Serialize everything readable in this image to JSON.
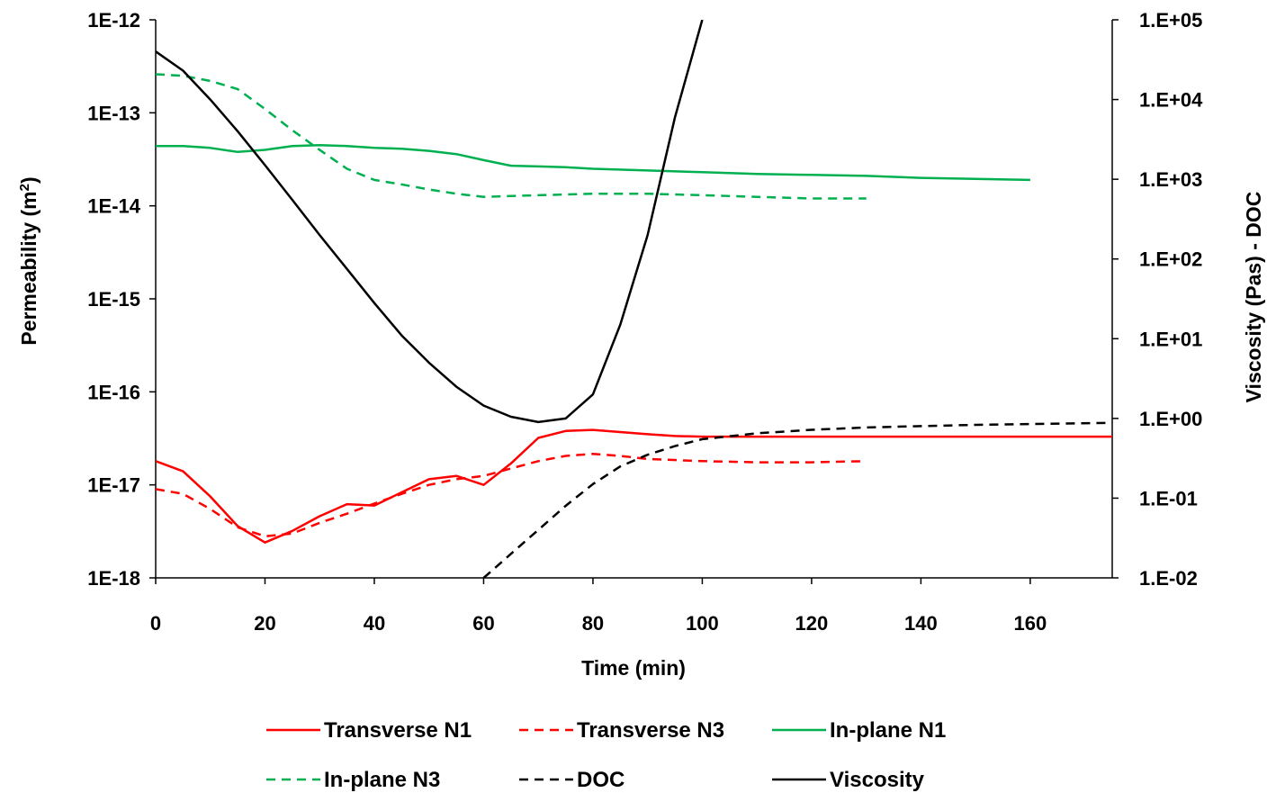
{
  "chart_data": {
    "type": "line",
    "xlabel": "Time (min)",
    "ylabel_left_text": "Permeability (m",
    "ylabel_left_sup": "2",
    "ylabel_left_close": ")",
    "ylabel_right": "Viscosity (Pas) - DOC",
    "xlim": [
      0,
      175
    ],
    "x_ticks": [
      "0",
      "20",
      "40",
      "60",
      "80",
      "100",
      "120",
      "140",
      "160"
    ],
    "x_tick_values": [
      0,
      20,
      40,
      60,
      80,
      100,
      120,
      140,
      160
    ],
    "y_left_scale": "log",
    "y_left_lim": [
      1e-18,
      1e-12
    ],
    "y_left_ticks": [
      "1E-18",
      "1E-17",
      "1E-16",
      "1E-15",
      "1E-14",
      "1E-13",
      "1E-12"
    ],
    "y_left_tick_values": [
      1e-18,
      1e-17,
      1e-16,
      1e-15,
      1e-14,
      1e-13,
      1e-12
    ],
    "y_right_scale": "log",
    "y_right_lim": [
      0.01,
      100000
    ],
    "y_right_ticks": [
      "1.E-02",
      "1.E-01",
      "1.E+00",
      "1.E+01",
      "1.E+02",
      "1.E+03",
      "1.E+04",
      "1.E+05"
    ],
    "y_right_tick_values": [
      0.01,
      0.1,
      1,
      10,
      100,
      1000,
      10000,
      100000
    ],
    "grid": false,
    "legend_position": "bottom",
    "series": [
      {
        "name": "Transverse N1",
        "color": "#ff0000",
        "dash": "solid",
        "axis": "left",
        "x": [
          0,
          5,
          10,
          15,
          20,
          25,
          30,
          35,
          40,
          45,
          50,
          55,
          60,
          65,
          70,
          75,
          80,
          85,
          90,
          95,
          100,
          110,
          120,
          140,
          160,
          175
        ],
        "y": [
          1.8e-17,
          1.4e-17,
          7.5e-18,
          3.6e-18,
          2.4e-18,
          3.2e-18,
          4.6e-18,
          6.2e-18,
          6e-18,
          8.3e-18,
          1.15e-17,
          1.25e-17,
          1e-17,
          1.7e-17,
          3.2e-17,
          3.8e-17,
          3.9e-17,
          3.7e-17,
          3.5e-17,
          3.35e-17,
          3.3e-17,
          3.3e-17,
          3.3e-17,
          3.3e-17,
          3.3e-17,
          3.3e-17
        ]
      },
      {
        "name": "Transverse N3",
        "color": "#ff0000",
        "dash": "dashed",
        "axis": "left",
        "x": [
          0,
          5,
          10,
          15,
          20,
          25,
          30,
          35,
          40,
          45,
          50,
          55,
          60,
          65,
          70,
          75,
          80,
          85,
          90,
          100,
          110,
          120,
          130
        ],
        "y": [
          9e-18,
          8e-18,
          5.5e-18,
          3.5e-18,
          2.8e-18,
          3e-18,
          3.9e-18,
          4.9e-18,
          6.3e-18,
          8e-18,
          1e-17,
          1.15e-17,
          1.25e-17,
          1.5e-17,
          1.8e-17,
          2.05e-17,
          2.15e-17,
          2.05e-17,
          1.9e-17,
          1.8e-17,
          1.75e-17,
          1.75e-17,
          1.8e-17
        ]
      },
      {
        "name": "In-plane N1",
        "color": "#00b050",
        "dash": "solid",
        "axis": "left",
        "x": [
          0,
          5,
          10,
          15,
          20,
          25,
          30,
          35,
          40,
          45,
          50,
          55,
          60,
          65,
          70,
          75,
          80,
          90,
          100,
          110,
          120,
          130,
          140,
          150,
          160
        ],
        "y": [
          4.4e-14,
          4.4e-14,
          4.2e-14,
          3.8e-14,
          4e-14,
          4.4e-14,
          4.5e-14,
          4.4e-14,
          4.2e-14,
          4.1e-14,
          3.9e-14,
          3.6e-14,
          3.1e-14,
          2.7e-14,
          2.65e-14,
          2.6e-14,
          2.5e-14,
          2.4e-14,
          2.3e-14,
          2.2e-14,
          2.15e-14,
          2.1e-14,
          2e-14,
          1.95e-14,
          1.9e-14
        ]
      },
      {
        "name": "In-plane N3",
        "color": "#00b050",
        "dash": "dashed",
        "axis": "left",
        "x": [
          0,
          5,
          10,
          15,
          20,
          25,
          30,
          35,
          40,
          45,
          50,
          55,
          60,
          70,
          80,
          90,
          100,
          110,
          120,
          130
        ],
        "y": [
          2.6e-13,
          2.5e-13,
          2.2e-13,
          1.8e-13,
          1.1e-13,
          6.5e-14,
          4e-14,
          2.5e-14,
          1.9e-14,
          1.7e-14,
          1.5e-14,
          1.35e-14,
          1.25e-14,
          1.3e-14,
          1.35e-14,
          1.35e-14,
          1.3e-14,
          1.25e-14,
          1.2e-14,
          1.2e-14
        ]
      },
      {
        "name": "DOC",
        "color": "#000000",
        "dash": "dashed",
        "axis": "right",
        "x": [
          60,
          65,
          70,
          75,
          80,
          85,
          90,
          95,
          100,
          110,
          120,
          130,
          140,
          150,
          160,
          175
        ],
        "y": [
          0.01,
          0.02,
          0.04,
          0.08,
          0.15,
          0.25,
          0.35,
          0.45,
          0.55,
          0.65,
          0.72,
          0.77,
          0.8,
          0.83,
          0.85,
          0.88
        ]
      },
      {
        "name": "Viscosity",
        "color": "#000000",
        "dash": "solid",
        "axis": "right",
        "x": [
          0,
          5,
          10,
          15,
          20,
          25,
          30,
          35,
          40,
          45,
          50,
          55,
          60,
          65,
          70,
          75,
          80,
          85,
          90,
          95,
          100
        ],
        "y": [
          40000,
          23000,
          10000,
          4000,
          1500,
          550,
          200,
          75,
          28,
          11,
          5,
          2.5,
          1.45,
          1.05,
          0.9,
          1.0,
          2.0,
          15,
          200,
          6000,
          100000
        ]
      }
    ]
  }
}
